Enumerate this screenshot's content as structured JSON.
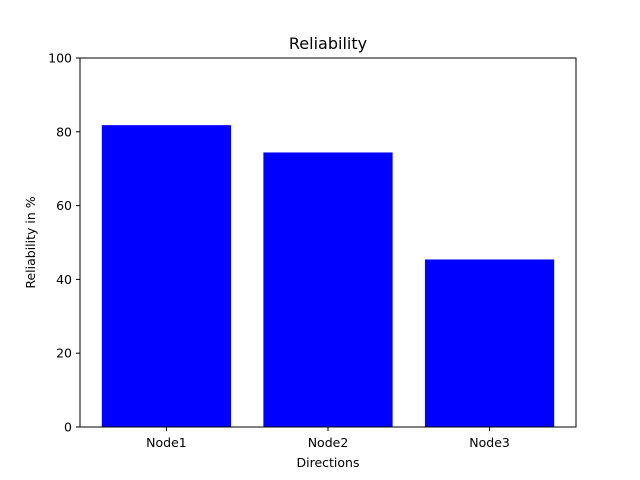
{
  "chart_data": {
    "type": "bar",
    "title": "Reliability",
    "xlabel": "Directions",
    "ylabel": "Reliability in %",
    "categories": [
      "Node1",
      "Node2",
      "Node3"
    ],
    "values": [
      81.8,
      74.4,
      45.4
    ],
    "ylim": [
      0,
      100
    ],
    "yticks": [
      0,
      20,
      40,
      60,
      80,
      100
    ],
    "grid": false,
    "bar_color": "#0000ff"
  }
}
